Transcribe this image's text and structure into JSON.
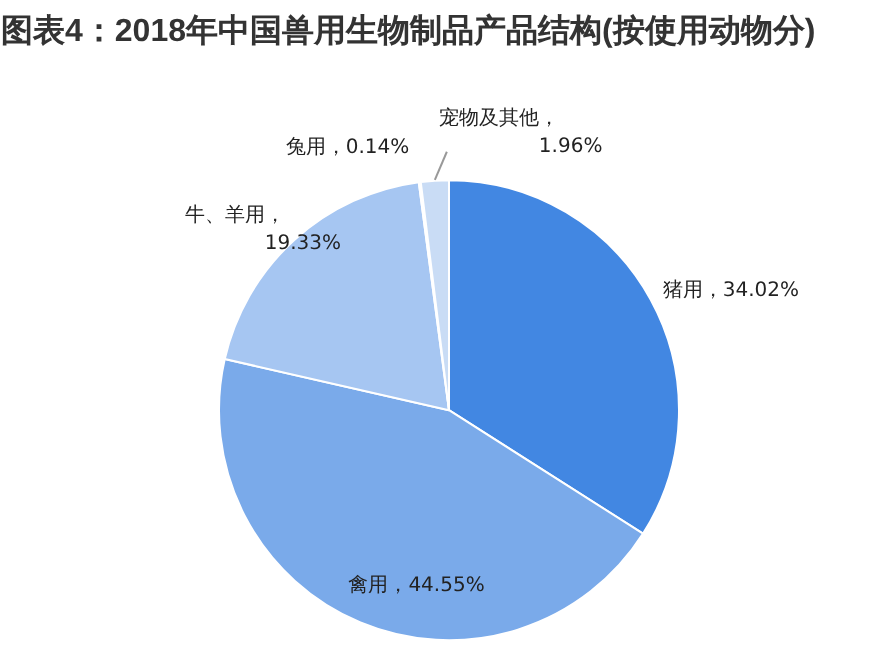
{
  "chart_data": {
    "type": "pie",
    "title": "图表4：2018年中国兽用生物制品产品结构(按使用动物分)",
    "categories": [
      "猪用",
      "禽用",
      "牛、羊用",
      "兔用",
      "宠物及其他"
    ],
    "values": [
      34.02,
      44.55,
      19.33,
      0.14,
      1.96
    ],
    "colors": [
      "#4287e2",
      "#7aaaea",
      "#a6c6f2",
      "#b8d1f3",
      "#c9dcf5"
    ],
    "value_labels": [
      "，34.02%",
      "，44.55%",
      "，\n19.33%",
      "，0.14%",
      "，\n1.96%"
    ],
    "legend": false
  }
}
